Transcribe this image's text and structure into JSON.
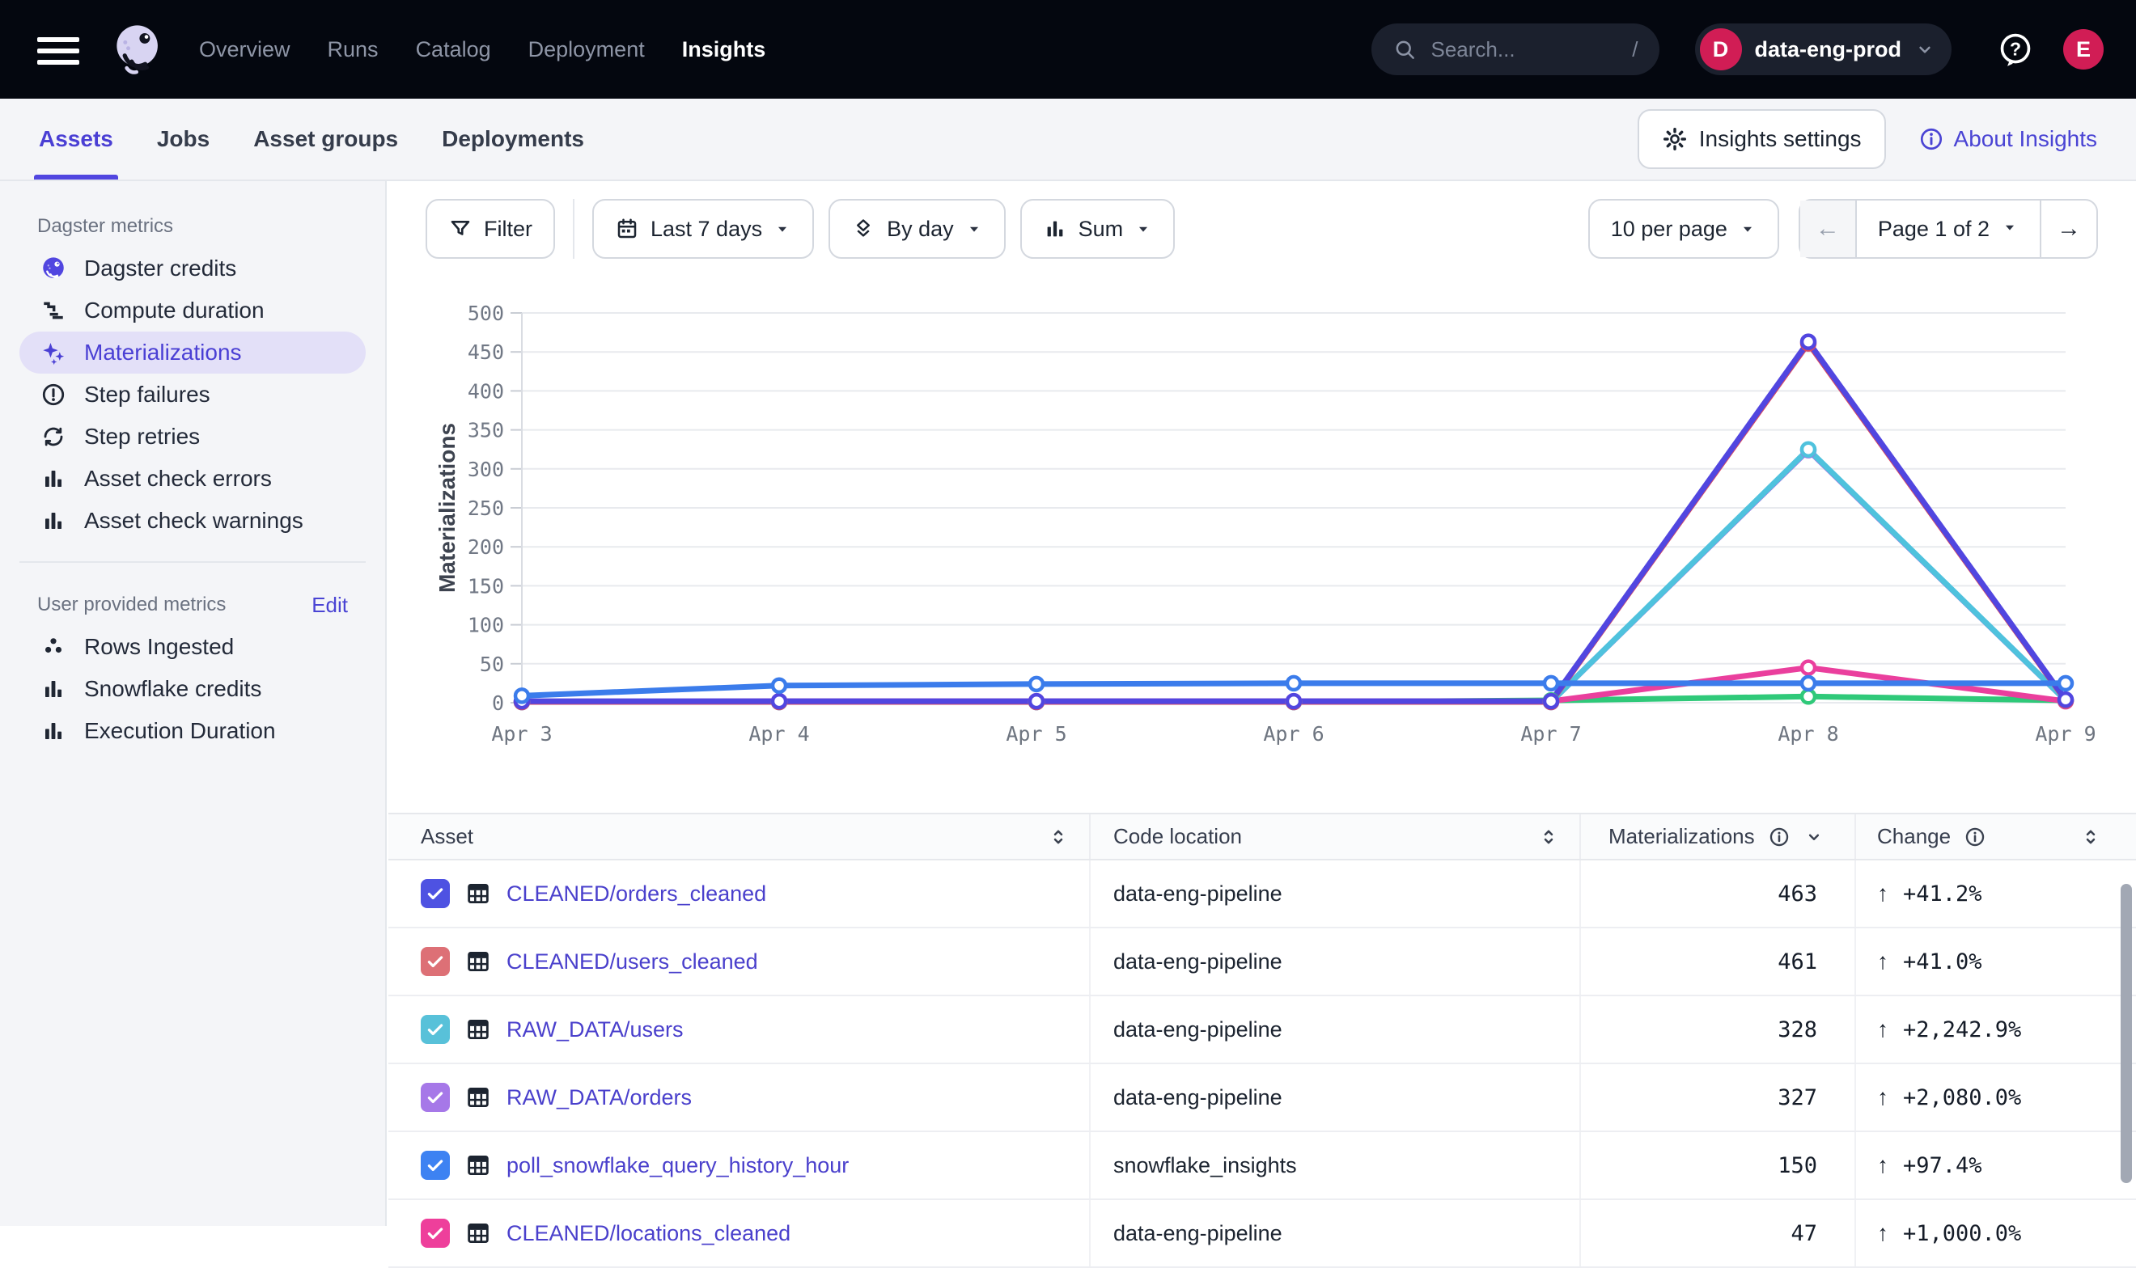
{
  "topbar": {
    "nav": [
      {
        "label": "Overview",
        "active": false
      },
      {
        "label": "Runs",
        "active": false
      },
      {
        "label": "Catalog",
        "active": false
      },
      {
        "label": "Deployment",
        "active": false
      },
      {
        "label": "Insights",
        "active": true
      }
    ],
    "search": {
      "placeholder": "Search...",
      "shortcut": "/"
    },
    "deployment": {
      "initial": "D",
      "name": "data-eng-prod",
      "badge_color": "#d11d55"
    },
    "avatar": "E"
  },
  "subnav": {
    "tabs": [
      {
        "label": "Assets",
        "active": true
      },
      {
        "label": "Jobs",
        "active": false
      },
      {
        "label": "Asset groups",
        "active": false
      },
      {
        "label": "Deployments",
        "active": false
      }
    ],
    "settings_button": "Insights settings",
    "about_link": "About Insights"
  },
  "sidebar": {
    "sections": [
      {
        "heading": "Dagster metrics",
        "items": [
          {
            "label": "Dagster credits",
            "icon": "dagster-logo-icon",
            "active": false
          },
          {
            "label": "Compute duration",
            "icon": "duration-icon",
            "active": false
          },
          {
            "label": "Materializations",
            "icon": "sparkles-icon",
            "active": true
          },
          {
            "label": "Step failures",
            "icon": "alert-circle-icon",
            "active": false
          },
          {
            "label": "Step retries",
            "icon": "retry-icon",
            "active": false
          },
          {
            "label": "Asset check errors",
            "icon": "bar-chart-icon",
            "active": false
          },
          {
            "label": "Asset check warnings",
            "icon": "bar-chart-icon",
            "active": false
          }
        ]
      },
      {
        "heading": "User provided metrics",
        "action": "Edit",
        "items": [
          {
            "label": "Rows Ingested",
            "icon": "dots-icon",
            "active": false
          },
          {
            "label": "Snowflake credits",
            "icon": "bar-chart-icon",
            "active": false
          },
          {
            "label": "Execution Duration",
            "icon": "bar-chart-icon",
            "active": false
          }
        ]
      }
    ]
  },
  "toolbar": {
    "filter": "Filter",
    "date_range": "Last 7 days",
    "group_by": "By day",
    "aggregation": "Sum",
    "per_page": "10 per page",
    "page": "Page 1 of 2",
    "prev_arrow": "←",
    "next_arrow": "→"
  },
  "chart_data": {
    "type": "line",
    "title": "",
    "xlabel": "",
    "ylabel": "Materializations",
    "x": [
      "Apr 3",
      "Apr 4",
      "Apr 5",
      "Apr 6",
      "Apr 7",
      "Apr 8",
      "Apr 9"
    ],
    "ylim": [
      0,
      500
    ],
    "yticks": [
      0,
      50,
      100,
      150,
      200,
      250,
      300,
      350,
      400,
      450,
      500
    ],
    "grid": true,
    "legend": "none",
    "series": [
      {
        "name": "green-series",
        "color": "#2fc979",
        "values": [
          1,
          1,
          1,
          1,
          3,
          8,
          3
        ]
      },
      {
        "name": "CLEANED/locations_cleaned",
        "color": "#ea3f9d",
        "values": [
          1,
          2,
          2,
          2,
          2,
          45,
          2
        ]
      },
      {
        "name": "RAW_DATA/orders",
        "color": "#a36de2",
        "values": [
          1,
          1,
          1,
          1,
          1,
          324,
          3
        ]
      },
      {
        "name": "RAW_DATA/users",
        "color": "#4fc2dd",
        "values": [
          1,
          1,
          1,
          1,
          1,
          325,
          3
        ]
      },
      {
        "name": "CLEANED/users_cleaned",
        "color": "#d9485f",
        "values": [
          1,
          1,
          1,
          1,
          1,
          461,
          3
        ]
      },
      {
        "name": "CLEANED/orders_cleaned",
        "color": "#5146e0",
        "values": [
          2,
          2,
          2,
          2,
          2,
          463,
          4
        ]
      },
      {
        "name": "poll_snowflake_query_history_hour",
        "color": "#3b7ceb",
        "values": [
          9,
          22,
          24,
          25,
          25,
          25,
          25
        ]
      }
    ]
  },
  "table": {
    "columns": [
      "Asset",
      "Code location",
      "Materializations",
      "Change"
    ],
    "rows": [
      {
        "asset": "CLEANED/orders_cleaned",
        "location": "data-eng-pipeline",
        "value": "463",
        "change": "+41.2%",
        "direction": "up",
        "color": "#4e52e2"
      },
      {
        "asset": "CLEANED/users_cleaned",
        "location": "data-eng-pipeline",
        "value": "461",
        "change": "+41.0%",
        "direction": "up",
        "color": "#dd7076"
      },
      {
        "asset": "RAW_DATA/users",
        "location": "data-eng-pipeline",
        "value": "328",
        "change": "+2,242.9%",
        "direction": "up",
        "color": "#58c1d9"
      },
      {
        "asset": "RAW_DATA/orders",
        "location": "data-eng-pipeline",
        "value": "327",
        "change": "+2,080.0%",
        "direction": "up",
        "color": "#a678e8"
      },
      {
        "asset": "poll_snowflake_query_history_hour",
        "location": "snowflake_insights",
        "value": "150",
        "change": "+97.4%",
        "direction": "up",
        "color": "#3d82f2"
      },
      {
        "asset": "CLEANED/locations_cleaned",
        "location": "data-eng-pipeline",
        "value": "47",
        "change": "+1,000.0%",
        "direction": "up",
        "color": "#ee3f9b"
      }
    ]
  }
}
